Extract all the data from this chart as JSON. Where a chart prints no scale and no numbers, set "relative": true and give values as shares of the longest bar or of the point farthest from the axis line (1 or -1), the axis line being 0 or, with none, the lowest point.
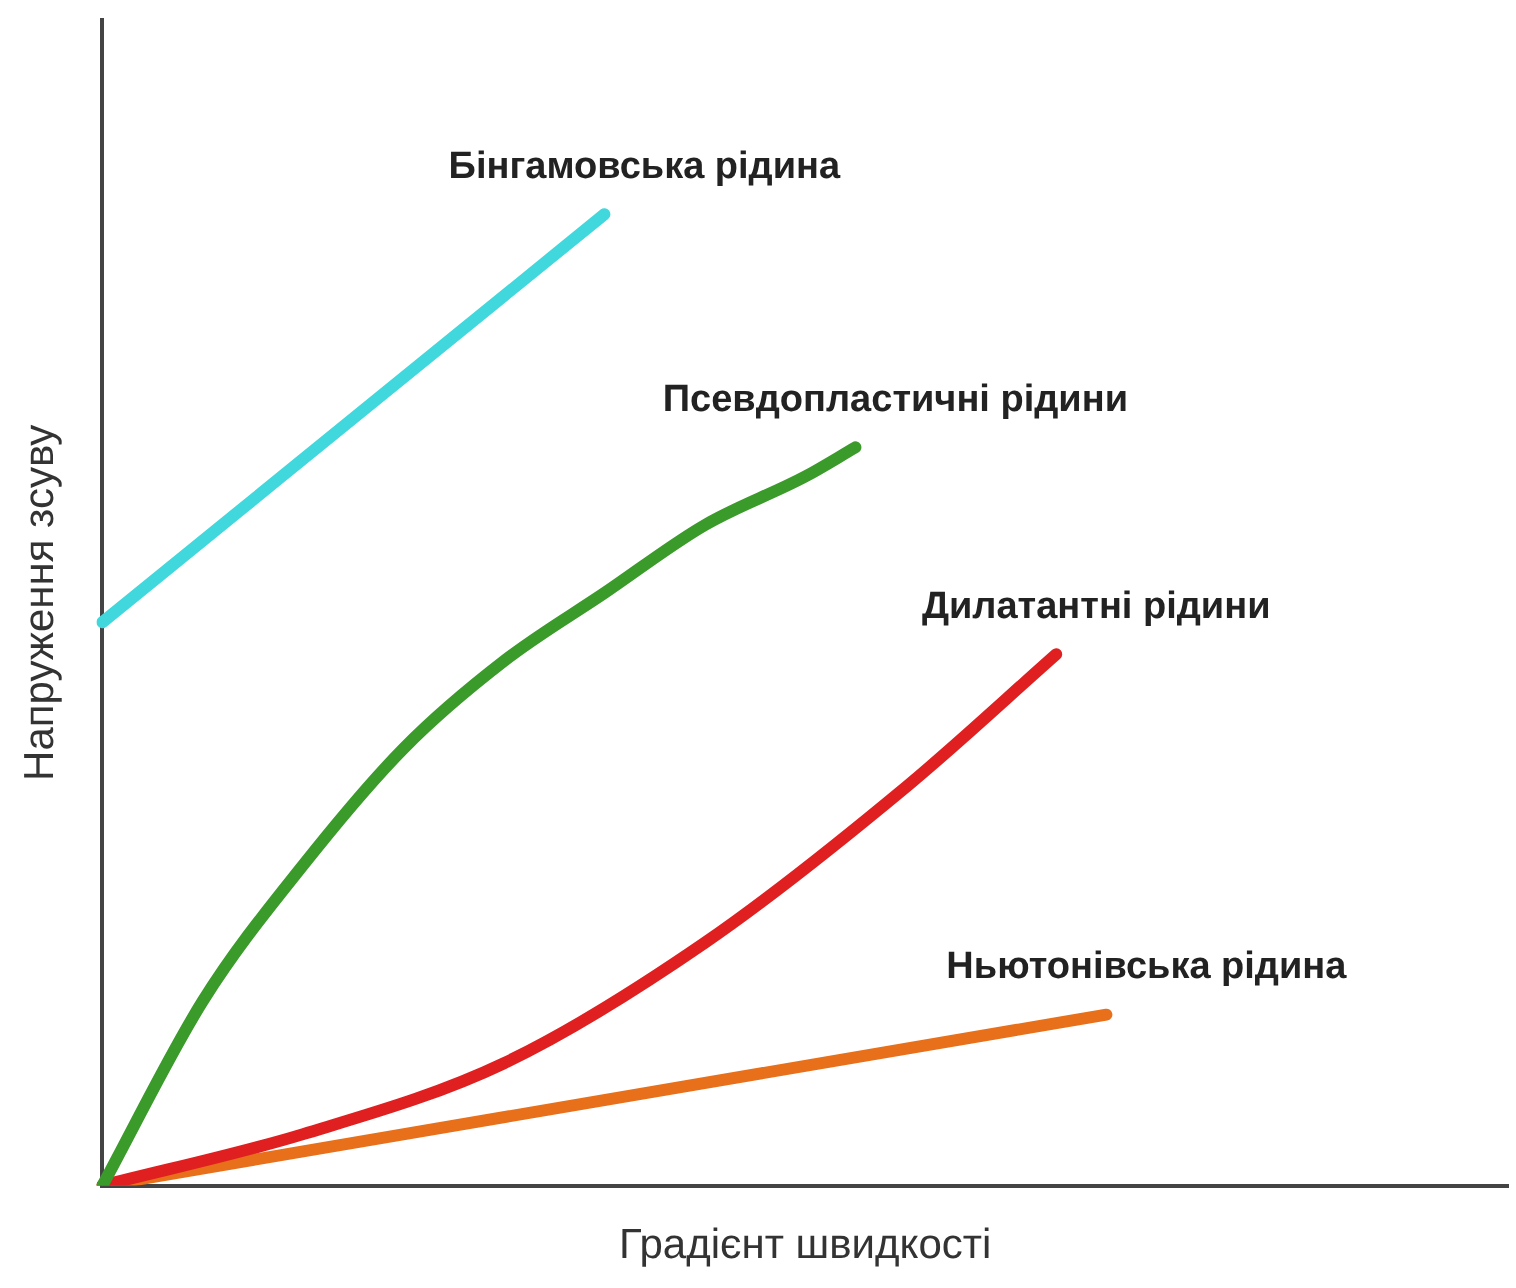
{
  "chart_data": {
    "type": "line",
    "relative": true,
    "xlabel": "Градієнт швидкості",
    "ylabel": "Напруження зсуву",
    "grid": false,
    "legend": false,
    "marker": "none",
    "line_style": "solid",
    "categories": [
      null,
      null,
      null,
      null,
      null,
      null,
      null,
      null,
      null,
      null,
      null,
      null,
      null,
      null,
      null,
      null,
      null,
      null,
      null,
      null,
      null,
      null,
      null,
      null,
      null,
      null,
      null,
      null,
      null
    ],
    "series": [
      {
        "name": "Бінгамовська рідина",
        "color": "#40d8dc",
        "values": [
          0.58,
          null,
          null,
          null,
          null,
          null,
          null,
          null,
          null,
          null,
          1.0,
          null,
          null,
          null,
          null,
          null,
          null,
          null,
          null,
          null,
          null,
          null,
          null,
          null,
          null,
          null,
          null,
          null,
          null
        ]
      },
      {
        "name": "Псевдопластичні рідини",
        "color": "#3a9a2a",
        "values": [
          0,
          null,
          0.19,
          null,
          0.33,
          null,
          0.45,
          null,
          0.54,
          null,
          0.61,
          null,
          0.68,
          null,
          0.73,
          0.76,
          null,
          null,
          null,
          null,
          null,
          null,
          null,
          null,
          null,
          null,
          null,
          null,
          null
        ]
      },
      {
        "name": "Дилатантні рідини",
        "color": "#e02020",
        "values": [
          0,
          null,
          null,
          null,
          0.053,
          null,
          null,
          null,
          0.126,
          null,
          null,
          null,
          0.25,
          null,
          null,
          null,
          0.41,
          null,
          null,
          0.547,
          null,
          null,
          null,
          null,
          null,
          null,
          null,
          null,
          null
        ]
      },
      {
        "name": "Ньютонівська рідина",
        "color": "#e8701a",
        "values": [
          0,
          null,
          null,
          null,
          null,
          null,
          null,
          null,
          null,
          null,
          null,
          null,
          null,
          null,
          null,
          null,
          null,
          null,
          null,
          null,
          0.176,
          null,
          null,
          null,
          null,
          null,
          null,
          null,
          null
        ]
      }
    ]
  }
}
